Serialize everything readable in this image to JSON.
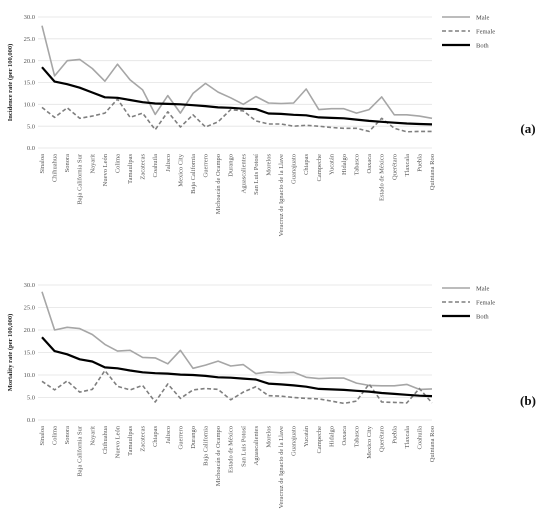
{
  "chart_data": [
    {
      "type": "line",
      "panel_label": "(a)",
      "ylabel": "Incidence rate (per 100,000)",
      "ylim": [
        0,
        30
      ],
      "yticks": [
        "0.0",
        "5.0",
        "10.0",
        "15.0",
        "20.0",
        "25.0",
        "30.0"
      ],
      "grid": true,
      "legend_position": "top-right",
      "categories": [
        "Sinaloa",
        "Chihuahua",
        "Sonora",
        "Baja California Sur",
        "Nayarit",
        "Nuevo León",
        "Colima",
        "Tamaulipas",
        "Zacatecas",
        "Coahuila",
        "Jalisco",
        "Mexico City",
        "Baja California",
        "Guerrero",
        "Michoacán de Ocampo",
        "Durango",
        "Aguascalientes",
        "San Luis Potosí",
        "Morelos",
        "Veracruz de Ignacio de la Llave",
        "Guanajuato",
        "Chiapas",
        "Campeche",
        "Yucatán",
        "Hidalgo",
        "Tabasco",
        "Oaxaca",
        "Estado de México",
        "Querétaro",
        "Tlaxcala",
        "Puebla",
        "Quintana Roo"
      ],
      "series": [
        {
          "name": "Male",
          "style": "solid-gray",
          "values": [
            28.0,
            16.5,
            20.0,
            20.3,
            18.2,
            15.3,
            19.2,
            15.6,
            13.3,
            7.7,
            12.0,
            8.0,
            12.5,
            14.8,
            12.8,
            11.5,
            10.0,
            11.8,
            10.3,
            10.2,
            10.3,
            13.5,
            8.8,
            9.0,
            9.0,
            8.0,
            8.8,
            11.7,
            7.6,
            7.6,
            7.3,
            6.8
          ]
        },
        {
          "name": "Female",
          "style": "dashed-gray",
          "values": [
            9.3,
            7.0,
            9.2,
            6.8,
            7.3,
            8.0,
            11.2,
            7.0,
            8.0,
            4.2,
            8.3,
            4.8,
            7.6,
            4.8,
            6.0,
            8.8,
            8.5,
            6.2,
            5.5,
            5.5,
            5.0,
            5.2,
            5.0,
            4.7,
            4.5,
            4.5,
            3.8,
            6.8,
            4.5,
            3.7,
            3.8,
            3.8
          ]
        },
        {
          "name": "Both",
          "style": "solid-black",
          "values": [
            18.5,
            15.2,
            14.6,
            13.8,
            12.7,
            11.6,
            11.5,
            11.0,
            10.5,
            10.2,
            10.1,
            10.0,
            9.8,
            9.6,
            9.3,
            9.2,
            9.0,
            8.9,
            7.9,
            7.8,
            7.6,
            7.5,
            7.0,
            6.9,
            6.8,
            6.5,
            6.2,
            6.0,
            5.8,
            5.6,
            5.5,
            5.4
          ]
        }
      ]
    },
    {
      "type": "line",
      "panel_label": "(b)",
      "ylabel": "Mortality rate (per 100,000)",
      "ylim": [
        0,
        30
      ],
      "yticks": [
        "0.0",
        "5.0",
        "10.0",
        "15.0",
        "20.0",
        "25.0",
        "30.0"
      ],
      "grid": true,
      "legend_position": "top-right",
      "categories": [
        "Sinaloa",
        "Colima",
        "Sonora",
        "Baja California Sur",
        "Nayarit",
        "Chihuahua",
        "Nuevo León",
        "Tamaulipas",
        "Zacatecas",
        "Chiapas",
        "Jalisco",
        "Guerrero",
        "Durango",
        "Baja California",
        "Michoacán de Ocampo",
        "Estado de México",
        "San Luis Potosí",
        "Aguascalientes",
        "Morelos",
        "Veracruz de Ignacio de la Llave",
        "Guanajuato",
        "Yucatán",
        "Campeche",
        "Hidalgo",
        "Oaxaca",
        "Tabasco",
        "Mexico City",
        "Querétaro",
        "Puebla",
        "Tlaxcala",
        "Coahuila",
        "Quintana Roo"
      ],
      "series": [
        {
          "name": "Male",
          "style": "solid-gray",
          "values": [
            28.5,
            20.0,
            20.6,
            20.3,
            19.0,
            16.8,
            15.3,
            15.5,
            13.9,
            13.8,
            12.5,
            15.5,
            11.5,
            12.2,
            13.1,
            12.0,
            12.3,
            10.3,
            10.7,
            10.5,
            10.6,
            9.5,
            9.2,
            9.3,
            9.3,
            8.2,
            7.7,
            7.6,
            7.6,
            7.9,
            6.8,
            6.9
          ]
        },
        {
          "name": "Female",
          "style": "dashed-gray",
          "values": [
            8.6,
            6.7,
            8.7,
            6.2,
            6.8,
            11.0,
            7.5,
            6.7,
            7.7,
            4.0,
            8.0,
            4.8,
            6.7,
            7.0,
            6.8,
            4.5,
            6.2,
            7.4,
            5.4,
            5.3,
            5.0,
            4.8,
            4.7,
            4.2,
            3.7,
            4.2,
            8.0,
            4.0,
            3.9,
            3.8,
            7.0,
            3.8
          ]
        },
        {
          "name": "Both",
          "style": "solid-black",
          "values": [
            18.4,
            15.3,
            14.6,
            13.5,
            13.0,
            11.7,
            11.5,
            11.0,
            10.6,
            10.4,
            10.3,
            10.1,
            10.0,
            9.8,
            9.5,
            9.4,
            9.2,
            9.0,
            8.1,
            7.9,
            7.7,
            7.4,
            6.9,
            6.8,
            6.7,
            6.5,
            6.3,
            6.0,
            5.8,
            5.6,
            5.4,
            5.3
          ]
        }
      ]
    }
  ]
}
